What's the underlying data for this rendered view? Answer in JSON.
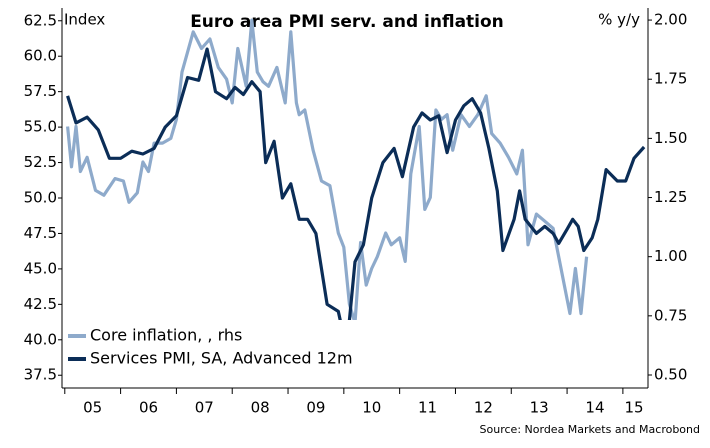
{
  "chart_data": {
    "type": "line",
    "title": "Euro area PMI serv. and inflation",
    "y_label": "Index",
    "y2_label": "% y/y",
    "source": "Source: Nordea Markets and Macrobond",
    "xlim": [
      2004.95,
      2015.45
    ],
    "xticks": [
      {
        "value": 2005.5,
        "label": "05"
      },
      {
        "value": 2006.5,
        "label": "06"
      },
      {
        "value": 2007.5,
        "label": "07"
      },
      {
        "value": 2008.5,
        "label": "08"
      },
      {
        "value": 2009.5,
        "label": "09"
      },
      {
        "value": 2010.5,
        "label": "10"
      },
      {
        "value": 2011.5,
        "label": "11"
      },
      {
        "value": 2012.5,
        "label": "12"
      },
      {
        "value": 2013.5,
        "label": "13"
      },
      {
        "value": 2014.5,
        "label": "14"
      },
      {
        "value": 2015.2,
        "label": "15"
      }
    ],
    "ylim": [
      36.6,
      63.4
    ],
    "yticks": [
      {
        "value": 37.5,
        "label": "37.5"
      },
      {
        "value": 40,
        "label": "40.0"
      },
      {
        "value": 42.5,
        "label": "42.5"
      },
      {
        "value": 45,
        "label": "45.0"
      },
      {
        "value": 47.5,
        "label": "47.5"
      },
      {
        "value": 50,
        "label": "50.0"
      },
      {
        "value": 52.5,
        "label": "52.5"
      },
      {
        "value": 55,
        "label": "55.0"
      },
      {
        "value": 57.5,
        "label": "57.5"
      },
      {
        "value": 60,
        "label": "60.0"
      },
      {
        "value": 62.5,
        "label": "62.5"
      }
    ],
    "y2lim": [
      0.445,
      2.051
    ],
    "y2ticks": [
      {
        "value": 0.5,
        "label": "0.50"
      },
      {
        "value": 0.75,
        "label": "0.75"
      },
      {
        "value": 1,
        "label": "1.00"
      },
      {
        "value": 1.25,
        "label": "1.25"
      },
      {
        "value": 1.5,
        "label": "1.50"
      },
      {
        "value": 1.75,
        "label": "1.75"
      },
      {
        "value": 2,
        "label": "2.00"
      }
    ],
    "legend": "lower-left",
    "series": [
      {
        "name": "Core inflation, , rhs",
        "color": "#8eaacb",
        "axis": "y2",
        "x": [
          2005.05,
          2005.12,
          2005.2,
          2005.28,
          2005.4,
          2005.55,
          2005.7,
          2005.9,
          2006.05,
          2006.15,
          2006.3,
          2006.4,
          2006.5,
          2006.6,
          2006.75,
          2006.9,
          2007.0,
          2007.1,
          2007.3,
          2007.45,
          2007.6,
          2007.75,
          2007.9,
          2008.0,
          2008.1,
          2008.25,
          2008.35,
          2008.45,
          2008.55,
          2008.65,
          2008.8,
          2008.95,
          2009.05,
          2009.15,
          2009.2,
          2009.3,
          2009.45,
          2009.6,
          2009.75,
          2009.9,
          2010.0,
          2010.1,
          2010.2,
          2010.3,
          2010.4,
          2010.5,
          2010.6,
          2010.75,
          2010.85,
          2011.0,
          2011.1,
          2011.2,
          2011.35,
          2011.45,
          2011.55,
          2011.65,
          2011.75,
          2011.85,
          2011.95,
          2012.1,
          2012.25,
          2012.4,
          2012.55,
          2012.65,
          2012.8,
          2012.95,
          2013.1,
          2013.2,
          2013.3,
          2013.45,
          2013.6,
          2013.75,
          2013.85,
          2013.95,
          2014.05,
          2014.15,
          2014.25,
          2014.35
        ],
        "values": [
          1.55,
          1.38,
          1.55,
          1.36,
          1.42,
          1.28,
          1.26,
          1.33,
          1.32,
          1.23,
          1.27,
          1.4,
          1.36,
          1.48,
          1.48,
          1.5,
          1.58,
          1.78,
          1.95,
          1.88,
          1.92,
          1.8,
          1.75,
          1.65,
          1.88,
          1.72,
          2.0,
          1.78,
          1.74,
          1.72,
          1.8,
          1.65,
          1.95,
          1.65,
          1.6,
          1.62,
          1.45,
          1.32,
          1.3,
          1.1,
          1.04,
          0.8,
          0.72,
          1.06,
          0.88,
          0.95,
          1.0,
          1.1,
          1.05,
          1.08,
          0.98,
          1.35,
          1.55,
          1.2,
          1.25,
          1.62,
          1.58,
          1.6,
          1.45,
          1.6,
          1.55,
          1.6,
          1.68,
          1.52,
          1.48,
          1.42,
          1.35,
          1.45,
          1.05,
          1.18,
          1.15,
          1.12,
          1.0,
          0.88,
          0.76,
          0.95,
          0.76,
          1.0
        ]
      },
      {
        "name": "Services PMI, SA, Advanced 12m",
        "color": "#0b2d57",
        "axis": "y",
        "x": [
          2005.05,
          2005.2,
          2005.4,
          2005.6,
          2005.8,
          2006.0,
          2006.2,
          2006.4,
          2006.6,
          2006.8,
          2007.0,
          2007.2,
          2007.4,
          2007.55,
          2007.7,
          2007.9,
          2008.05,
          2008.2,
          2008.35,
          2008.5,
          2008.6,
          2008.75,
          2008.9,
          2009.05,
          2009.2,
          2009.35,
          2009.5,
          2009.7,
          2009.9,
          2010.05,
          2010.2,
          2010.35,
          2010.5,
          2010.7,
          2010.9,
          2011.05,
          2011.25,
          2011.4,
          2011.55,
          2011.7,
          2011.85,
          2012.0,
          2012.15,
          2012.3,
          2012.45,
          2012.6,
          2012.75,
          2012.85,
          2013.05,
          2013.15,
          2013.25,
          2013.45,
          2013.6,
          2013.75,
          2013.85,
          2014.0,
          2014.1,
          2014.2,
          2014.3,
          2014.45,
          2014.55,
          2014.7,
          2014.9,
          2015.05,
          2015.2,
          2015.38
        ],
        "values": [
          57.2,
          55.3,
          55.7,
          54.8,
          52.8,
          52.8,
          53.3,
          53.1,
          53.5,
          55.0,
          55.8,
          58.5,
          58.3,
          60.5,
          57.5,
          57.0,
          57.8,
          57.3,
          58.2,
          57.5,
          52.5,
          54.0,
          50.0,
          51.0,
          48.5,
          48.5,
          47.5,
          42.5,
          42.0,
          39.3,
          45.5,
          46.7,
          50.0,
          52.5,
          53.5,
          51.5,
          55.0,
          56.0,
          55.5,
          55.8,
          53.2,
          55.5,
          56.5,
          57.0,
          56.0,
          53.5,
          50.5,
          46.3,
          48.5,
          50.5,
          48.5,
          47.5,
          48.0,
          47.5,
          46.8,
          47.8,
          48.5,
          48.0,
          46.3,
          47.2,
          48.5,
          52.0,
          51.2,
          51.2,
          52.8,
          53.6
        ]
      }
    ]
  }
}
